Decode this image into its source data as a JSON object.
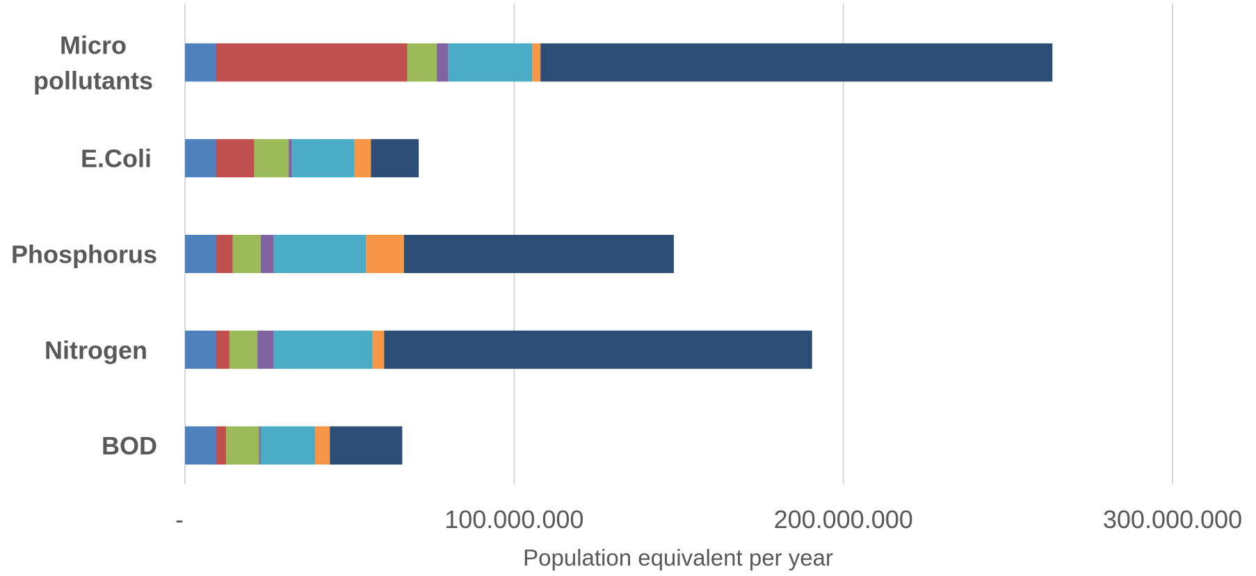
{
  "chart_data": {
    "type": "bar",
    "orientation": "horizontal",
    "stacked": true,
    "categories": [
      "Micro\npollutants",
      "E.Coli",
      "Phosphorus",
      "Nitrogen",
      "BOD"
    ],
    "series": [
      {
        "color": "#4f81bd",
        "values": [
          9500000,
          9500000,
          9500000,
          9500000,
          9500000
        ]
      },
      {
        "color": "#c0504d",
        "values": [
          58000000,
          11500000,
          5000000,
          4000000,
          3000000
        ]
      },
      {
        "color": "#9bbb59",
        "values": [
          9000000,
          10500000,
          8500000,
          8500000,
          10000000
        ]
      },
      {
        "color": "#8064a2",
        "values": [
          3500000,
          1000000,
          4000000,
          5000000,
          500000
        ]
      },
      {
        "color": "#4bacc6",
        "values": [
          25500000,
          19000000,
          28000000,
          30000000,
          16500000
        ]
      },
      {
        "color": "#f79646",
        "values": [
          2500000,
          5000000,
          11500000,
          3500000,
          4500000
        ]
      },
      {
        "color": "#2c4d75",
        "values": [
          155500000,
          14500000,
          82000000,
          130000000,
          22000000
        ]
      }
    ],
    "ticks": [
      "-",
      "100.000.000",
      "200.000.000",
      "300.000.000"
    ],
    "tick_values": [
      0,
      100000000,
      200000000,
      300000000
    ],
    "xlabel": "Population equivalent per year",
    "xlim": [
      0,
      300000000
    ],
    "grid": true,
    "legend": "none"
  }
}
